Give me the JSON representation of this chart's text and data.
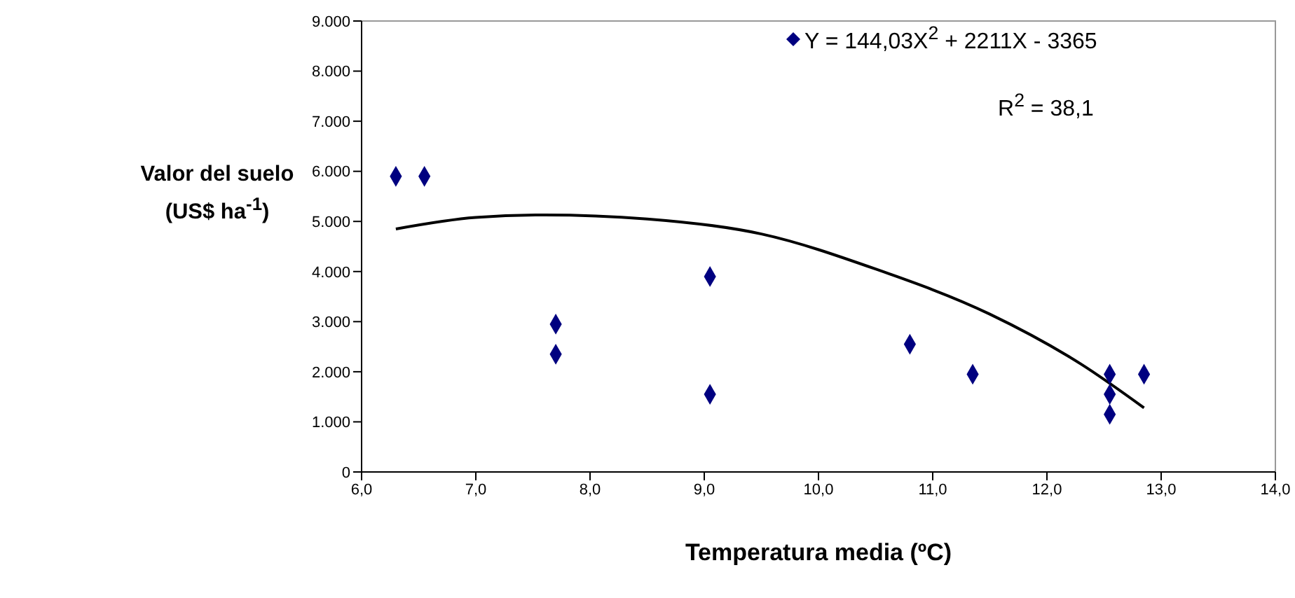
{
  "chart_data": {
    "type": "scatter",
    "xlabel": "Temperatura media (ºC)",
    "ylabel": "Valor del suelo (US$ ha$^{-1}$)",
    "series": [
      {
        "name": "Y = 144,03X$^{2}$ + 2211X - 3365",
        "color": "#000080",
        "marker": "diamond",
        "x": [
          6.3,
          6.55,
          7.7,
          7.7,
          9.05,
          9.05,
          10.8,
          11.35,
          12.55,
          12.55,
          12.55,
          12.85
        ],
        "values": [
          5900,
          5900,
          2950,
          2350,
          3900,
          1550,
          2550,
          1950,
          1950,
          1550,
          1150,
          1950
        ]
      },
      {
        "type": "line",
        "color": "#000000",
        "marker": "none",
        "line_style": "solid",
        "x": [
          6.3,
          7,
          7.6,
          8.5,
          9.5,
          10.5,
          11.5,
          12.3,
          12.85
        ],
        "values": [
          4850,
          5080,
          5130,
          5050,
          4750,
          4050,
          3150,
          2150,
          1280
        ]
      }
    ],
    "xlim": [
      6,
      14
    ],
    "xticks": [
      {
        "value": 6,
        "label": "6,0"
      },
      {
        "value": 7,
        "label": "7,0"
      },
      {
        "value": 8,
        "label": "8,0"
      },
      {
        "value": 9,
        "label": "9,0"
      },
      {
        "value": 10,
        "label": "10,0"
      },
      {
        "value": 11,
        "label": "11,0"
      },
      {
        "value": 12,
        "label": "12,0"
      },
      {
        "value": 13,
        "label": "13,0"
      },
      {
        "value": 14,
        "label": "14,0"
      }
    ],
    "ylim": [
      0,
      9000
    ],
    "yticks": [
      0,
      {
        "value": 1000,
        "label": "1.000"
      },
      {
        "value": 2000,
        "label": "2.000"
      },
      {
        "value": 3000,
        "label": "3.000"
      },
      {
        "value": 4000,
        "label": "4.000"
      },
      {
        "value": 5000,
        "label": "5.000"
      },
      {
        "value": 6000,
        "label": "6.000"
      },
      {
        "value": 7000,
        "label": "7.000"
      },
      {
        "value": 8000,
        "label": "8.000"
      },
      {
        "value": 9000,
        "label": "9.000"
      }
    ],
    "grid": false,
    "legend": "top right",
    "annotations": [
      "R$^{2}$ = 38,1"
    ]
  }
}
